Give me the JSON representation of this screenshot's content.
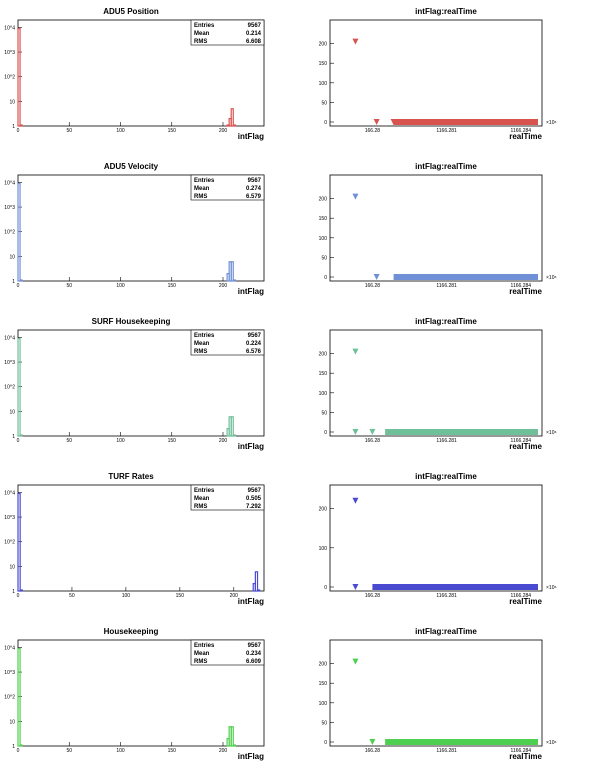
{
  "colors": {
    "adu5_position": "#d9534f",
    "adu5_velocity": "#6f8fd6",
    "surf_housekeeping": "#6fbf9a",
    "turf_rates": "#4a4ad0",
    "housekeeping": "#4fcf4f",
    "axis": "#000000"
  },
  "chart_data": [
    {
      "type": "bar",
      "title": "ADU5 Position",
      "xlabel": "intFlag",
      "ylabel": "",
      "color_key": "adu5_position",
      "x_ticks": [
        "0",
        "50",
        "100",
        "150",
        "200"
      ],
      "y_ticks": [
        "1",
        "10",
        "10^2",
        "10^3",
        "10^4"
      ],
      "xlim": [
        0,
        240
      ],
      "ylim_log": [
        1,
        20000
      ],
      "bins": [
        {
          "x": 0,
          "value": 9000
        },
        {
          "x": 2,
          "value": 1
        },
        {
          "x": 204,
          "value": 1
        },
        {
          "x": 206,
          "value": 2
        },
        {
          "x": 208,
          "value": 5
        },
        {
          "x": 210,
          "value": 1
        }
      ],
      "stats": {
        "entries_label": "Entries",
        "entries": "9567",
        "mean_label": "Mean",
        "mean": "0.214",
        "rms_label": "RMS",
        "rms": "6.608"
      }
    },
    {
      "type": "scatter",
      "title": "intFlag:realTime",
      "xlabel": "realTime",
      "y_ticks": [
        "0",
        "50",
        "100",
        "150",
        "200"
      ],
      "ylim": [
        0,
        250
      ],
      "x_tick_labels": [
        "166.28",
        "1166.281",
        "1166.284"
      ],
      "x_exponent": "×10⁶",
      "color_key": "adu5_position",
      "points": [
        {
          "x": 0.12,
          "y": 205
        },
        {
          "x": 0.22,
          "y": 0
        },
        {
          "x": 0.3,
          "y": 0
        }
      ],
      "band": {
        "x_start": 0.3,
        "x_end": 1.0,
        "y": 0
      }
    },
    {
      "type": "bar",
      "title": "ADU5 Velocity",
      "xlabel": "intFlag",
      "color_key": "adu5_velocity",
      "x_ticks": [
        "0",
        "50",
        "100",
        "150",
        "200"
      ],
      "y_ticks": [
        "1",
        "10",
        "10^2",
        "10^3",
        "10^4"
      ],
      "xlim": [
        0,
        240
      ],
      "ylim_log": [
        1,
        20000
      ],
      "bins": [
        {
          "x": 0,
          "value": 9000
        },
        {
          "x": 2,
          "value": 1
        },
        {
          "x": 204,
          "value": 2
        },
        {
          "x": 206,
          "value": 6
        },
        {
          "x": 208,
          "value": 6
        },
        {
          "x": 210,
          "value": 1
        }
      ],
      "stats": {
        "entries_label": "Entries",
        "entries": "9567",
        "mean_label": "Mean",
        "mean": "0.274",
        "rms_label": "RMS",
        "rms": "6.579"
      }
    },
    {
      "type": "scatter",
      "title": "intFlag:realTime",
      "xlabel": "realTime",
      "y_ticks": [
        "0",
        "50",
        "100",
        "150",
        "200"
      ],
      "ylim": [
        0,
        250
      ],
      "x_tick_labels": [
        "166.28",
        "1166.281",
        "1166.284"
      ],
      "x_exponent": "×10⁶",
      "color_key": "adu5_velocity",
      "points": [
        {
          "x": 0.12,
          "y": 205
        },
        {
          "x": 0.22,
          "y": 0
        }
      ],
      "band": {
        "x_start": 0.3,
        "x_end": 1.0,
        "y": 0
      }
    },
    {
      "type": "bar",
      "title": "SURF Housekeeping",
      "xlabel": "intFlag",
      "color_key": "surf_housekeeping",
      "x_ticks": [
        "0",
        "50",
        "100",
        "150",
        "200"
      ],
      "y_ticks": [
        "1",
        "10",
        "10^2",
        "10^3",
        "10^4"
      ],
      "xlim": [
        0,
        240
      ],
      "ylim_log": [
        1,
        20000
      ],
      "bins": [
        {
          "x": 0,
          "value": 9000
        },
        {
          "x": 2,
          "value": 1
        },
        {
          "x": 204,
          "value": 2
        },
        {
          "x": 206,
          "value": 6
        },
        {
          "x": 208,
          "value": 6
        },
        {
          "x": 210,
          "value": 1
        }
      ],
      "stats": {
        "entries_label": "Entries",
        "entries": "9567",
        "mean_label": "Mean",
        "mean": "0.224",
        "rms_label": "RMS",
        "rms": "6.576"
      }
    },
    {
      "type": "scatter",
      "title": "intFlag:realTime",
      "xlabel": "realTime",
      "y_ticks": [
        "0",
        "50",
        "100",
        "150",
        "200"
      ],
      "ylim": [
        0,
        250
      ],
      "x_tick_labels": [
        "166.28",
        "1166.281",
        "1166.284"
      ],
      "x_exponent": "×10⁶",
      "color_key": "surf_housekeeping",
      "points": [
        {
          "x": 0.12,
          "y": 205
        },
        {
          "x": 0.12,
          "y": 0
        },
        {
          "x": 0.2,
          "y": 0
        }
      ],
      "band": {
        "x_start": 0.26,
        "x_end": 1.0,
        "y": 0
      }
    },
    {
      "type": "bar",
      "title": "TURF Rates",
      "xlabel": "intFlag",
      "color_key": "turf_rates",
      "x_ticks": [
        "0",
        "50",
        "100",
        "150",
        "200"
      ],
      "y_ticks": [
        "1",
        "10",
        "10^2",
        "10^3",
        "10^4"
      ],
      "xlim": [
        0,
        228
      ],
      "ylim_log": [
        1,
        20000
      ],
      "bins": [
        {
          "x": 0,
          "value": 9000
        },
        {
          "x": 2,
          "value": 1
        },
        {
          "x": 218,
          "value": 2
        },
        {
          "x": 220,
          "value": 6
        },
        {
          "x": 222,
          "value": 1
        }
      ],
      "stats": {
        "entries_label": "Entries",
        "entries": "9567",
        "mean_label": "Mean",
        "mean": "0.505",
        "rms_label": "RMS",
        "rms": "7.292"
      }
    },
    {
      "type": "scatter",
      "title": "intFlag:realTime",
      "xlabel": "realTime",
      "y_ticks": [
        "0",
        "100",
        "200"
      ],
      "ylim": [
        0,
        250
      ],
      "x_tick_labels": [
        "166.28",
        "1166.281",
        "1166.284"
      ],
      "x_exponent": "×10⁶",
      "color_key": "turf_rates",
      "points": [
        {
          "x": 0.12,
          "y": 220
        },
        {
          "x": 0.12,
          "y": 0
        }
      ],
      "band": {
        "x_start": 0.2,
        "x_end": 1.0,
        "y": 0
      }
    },
    {
      "type": "bar",
      "title": "Housekeeping",
      "xlabel": "intFlag",
      "color_key": "housekeeping",
      "x_ticks": [
        "0",
        "50",
        "100",
        "150",
        "200"
      ],
      "y_ticks": [
        "1",
        "10",
        "10^2",
        "10^3",
        "10^4"
      ],
      "xlim": [
        0,
        240
      ],
      "ylim_log": [
        1,
        20000
      ],
      "bins": [
        {
          "x": 0,
          "value": 9000
        },
        {
          "x": 2,
          "value": 1
        },
        {
          "x": 204,
          "value": 2
        },
        {
          "x": 206,
          "value": 6
        },
        {
          "x": 208,
          "value": 6
        },
        {
          "x": 210,
          "value": 1
        }
      ],
      "stats": {
        "entries_label": "Entries",
        "entries": "9567",
        "mean_label": "Mean",
        "mean": "0.234",
        "rms_label": "RMS",
        "rms": "6.609"
      }
    },
    {
      "type": "scatter",
      "title": "intFlag:realTime",
      "xlabel": "realTime",
      "y_ticks": [
        "0",
        "50",
        "100",
        "150",
        "200"
      ],
      "ylim": [
        0,
        250
      ],
      "x_tick_labels": [
        "166.28",
        "1166.281",
        "1166.284"
      ],
      "x_exponent": "×10⁶",
      "color_key": "housekeeping",
      "points": [
        {
          "x": 0.12,
          "y": 205
        },
        {
          "x": 0.2,
          "y": 0
        }
      ],
      "band": {
        "x_start": 0.26,
        "x_end": 1.0,
        "y": 0
      }
    }
  ]
}
